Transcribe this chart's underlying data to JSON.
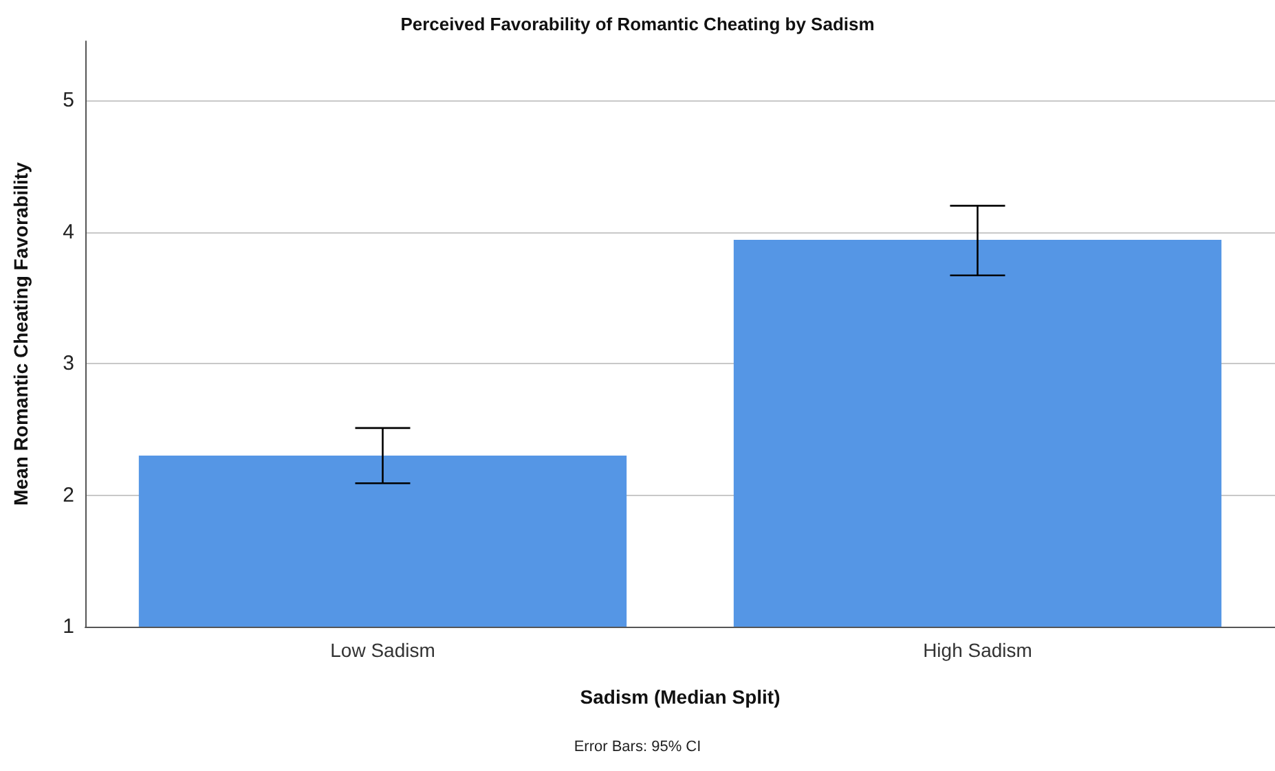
{
  "chart_data": {
    "type": "bar",
    "title": "Perceived Favorability of Romantic Cheating by Sadism",
    "xlabel": "Sadism (Median Split)",
    "ylabel": "Mean Romantic Cheating Favorability",
    "categories": [
      "Low Sadism",
      "High Sadism"
    ],
    "values": [
      2.3,
      3.94
    ],
    "errors": [
      [
        2.09,
        2.51
      ],
      [
        3.67,
        4.2
      ]
    ],
    "color": "#5596e5",
    "ylim": [
      1,
      5.45
    ],
    "yticks": [
      1,
      2,
      3,
      4,
      5
    ],
    "grid": "y",
    "annotations": [
      "Error Bars: 95% CI"
    ]
  }
}
